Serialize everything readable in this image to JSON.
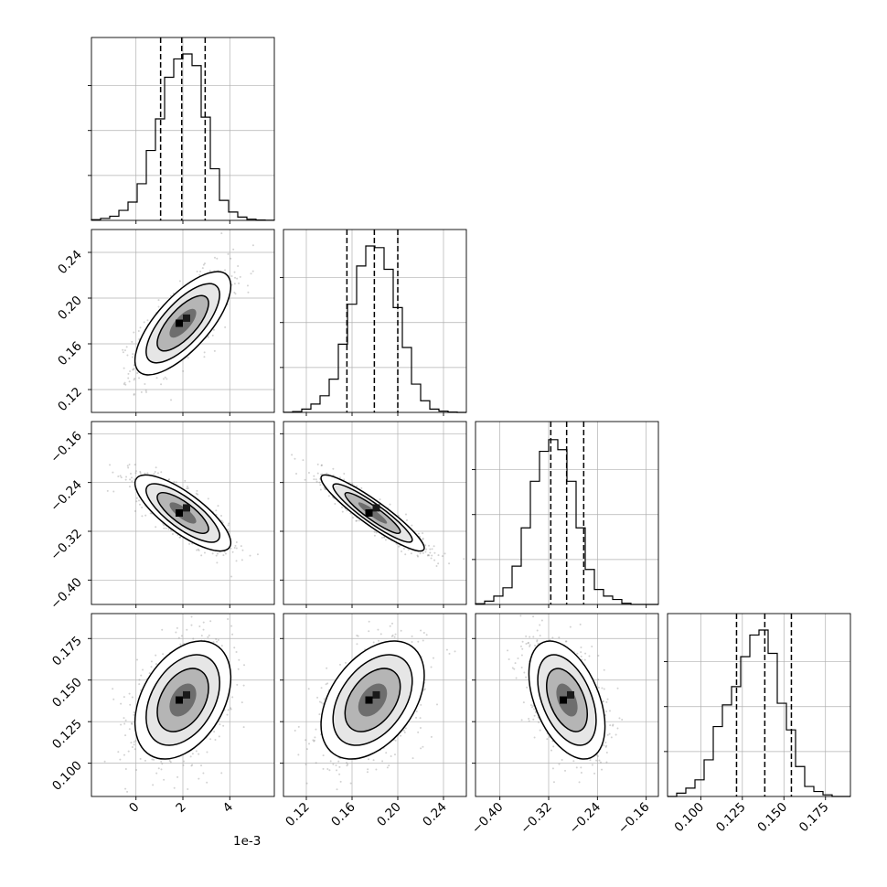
{
  "chart_data": {
    "type": "corner",
    "parameter_count": 4,
    "x_offset_label": "1e-3",
    "quantile_line_style": "dashed",
    "grid": true,
    "colors": {
      "hist": "#000000",
      "points": "#7f7f7f",
      "grid": "#b0b0b0",
      "contour": "#000000"
    },
    "parameters": [
      {
        "range": [
          -1.9,
          5.9
        ],
        "ticks": [
          0,
          2,
          4
        ],
        "tick_labels": [
          "0",
          "2",
          "4"
        ],
        "quantiles": [
          1.05,
          1.95,
          2.95
        ],
        "hist_bins": [
          0.004,
          0.012,
          0.025,
          0.06,
          0.11,
          0.22,
          0.42,
          0.61,
          0.86,
          0.97,
          1.0,
          0.93,
          0.62,
          0.31,
          0.12,
          0.05,
          0.02,
          0.007,
          0.002,
          0.001
        ],
        "mean": 2.0,
        "sd": 0.95
      },
      {
        "range": [
          0.1,
          0.26
        ],
        "ticks": [
          0.12,
          0.16,
          0.2,
          0.24
        ],
        "tick_labels": [
          "0.12",
          "0.16",
          "0.20",
          "0.24"
        ],
        "quantiles": [
          0.1555,
          0.1795,
          0.2
        ],
        "hist_bins": [
          0.001,
          0.005,
          0.02,
          0.05,
          0.1,
          0.2,
          0.41,
          0.65,
          0.88,
          1.0,
          0.99,
          0.86,
          0.63,
          0.39,
          0.17,
          0.07,
          0.02,
          0.008,
          0.002,
          0.0
        ],
        "mean": 0.178,
        "sd": 0.021
      },
      {
        "range": [
          -0.44,
          -0.14
        ],
        "ticks": [
          -0.4,
          -0.32,
          -0.24,
          -0.16
        ],
        "tick_labels": [
          "−0.40",
          "−0.32",
          "−0.24",
          "−0.16"
        ],
        "quantiles": [
          -0.3165,
          -0.2905,
          -0.2625
        ],
        "hist_bins": [
          0.004,
          0.02,
          0.05,
          0.1,
          0.23,
          0.46,
          0.74,
          0.92,
          0.99,
          0.93,
          0.74,
          0.46,
          0.21,
          0.09,
          0.05,
          0.03,
          0.007,
          0.0,
          0.0,
          0.0
        ],
        "mean": -0.29,
        "sd": 0.029
      },
      {
        "range": [
          0.08,
          0.19
        ],
        "ticks": [
          0.1,
          0.125,
          0.15,
          0.175
        ],
        "tick_labels": [
          "0.100",
          "0.125",
          "0.150",
          "0.175"
        ],
        "quantiles": [
          0.1215,
          0.1385,
          0.1545
        ],
        "hist_bins": [
          0.0,
          0.02,
          0.05,
          0.1,
          0.22,
          0.42,
          0.55,
          0.66,
          0.84,
          0.97,
          1.0,
          0.86,
          0.56,
          0.4,
          0.18,
          0.06,
          0.03,
          0.01,
          0.0,
          0.0
        ],
        "mean": 0.138,
        "sd": 0.0165
      }
    ],
    "pair_correlations": {
      "1_0": 0.72,
      "2_0": -0.78,
      "2_1": -0.92,
      "3_0": 0.38,
      "3_1": 0.42,
      "3_2": -0.45
    }
  }
}
